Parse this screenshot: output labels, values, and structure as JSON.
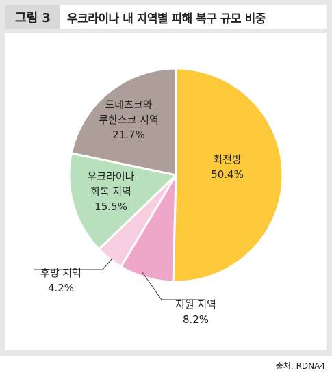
{
  "figure": {
    "tag": "그림 3",
    "title": "우크라이나 내 지역별 피해 복구 규모 비중"
  },
  "source": "출처: RDNA4",
  "colors": {
    "frame": "#e6e6e6",
    "tag_bg": "#d9d9d9",
    "leader": "#333333"
  },
  "chart_data": {
    "type": "pie",
    "start_angle_deg": 0,
    "direction": "clockwise",
    "slices": [
      {
        "label_lines": [
          "최전방"
        ],
        "value": 50.4,
        "value_label": "50.4%",
        "color": "#fbc93a",
        "label_pos": "inside"
      },
      {
        "label_lines": [
          "지원 지역"
        ],
        "value": 8.2,
        "value_label": "8.2%",
        "color": "#efa7c9",
        "label_pos": "outside-bottom"
      },
      {
        "label_lines": [
          "후방 지역"
        ],
        "value": 4.2,
        "value_label": "4.2%",
        "color": "#f7cde0",
        "label_pos": "outside-left"
      },
      {
        "label_lines": [
          "우크라이나",
          "회복 지역"
        ],
        "value": 15.5,
        "value_label": "15.5%",
        "color": "#b9e0bd",
        "label_pos": "inside"
      },
      {
        "label_lines": [
          "도네츠크와",
          "루한스크 지역"
        ],
        "value": 21.7,
        "value_label": "21.7%",
        "color": "#ae9e99",
        "label_pos": "inside"
      }
    ]
  }
}
